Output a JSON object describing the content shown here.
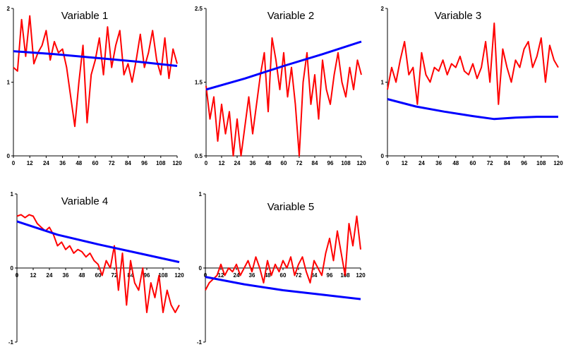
{
  "chart_data": [
    {
      "type": "line",
      "title": "Variable 1",
      "x_ticks": [
        0,
        12,
        24,
        36,
        48,
        60,
        72,
        84,
        96,
        108,
        120
      ],
      "y_ticks": [
        "0",
        "1",
        "2"
      ],
      "xlim": [
        0,
        120
      ],
      "ylim": [
        0,
        2
      ],
      "series": [
        {
          "color": "#ff0000",
          "x": [
            0,
            3,
            6,
            9,
            12,
            15,
            18,
            21,
            24,
            27,
            30,
            33,
            36,
            39,
            42,
            45,
            48,
            51,
            54,
            57,
            60,
            63,
            66,
            69,
            72,
            75,
            78,
            81,
            84,
            87,
            90,
            93,
            96,
            99,
            102,
            105,
            108,
            111,
            114,
            117,
            120
          ],
          "values": [
            1.2,
            1.15,
            1.85,
            1.35,
            1.9,
            1.25,
            1.4,
            1.5,
            1.7,
            1.3,
            1.55,
            1.4,
            1.45,
            1.2,
            0.8,
            0.4,
            1.0,
            1.5,
            0.45,
            1.1,
            1.3,
            1.6,
            1.1,
            1.75,
            1.2,
            1.5,
            1.7,
            1.1,
            1.25,
            1.0,
            1.3,
            1.65,
            1.2,
            1.4,
            1.7,
            1.3,
            1.1,
            1.6,
            1.05,
            1.45,
            1.25
          ]
        },
        {
          "color": "#0000ff",
          "x": [
            0,
            30,
            60,
            90,
            120
          ],
          "values": [
            1.42,
            1.38,
            1.33,
            1.28,
            1.22
          ]
        }
      ]
    },
    {
      "type": "line",
      "title": "Variable 2",
      "x_ticks": [
        0,
        12,
        24,
        36,
        48,
        60,
        72,
        84,
        96,
        108,
        120
      ],
      "y_ticks": [
        "0.5",
        "1.5",
        "2.5"
      ],
      "xlim": [
        0,
        120
      ],
      "ylim": [
        0.5,
        2.5
      ],
      "series": [
        {
          "color": "#ff0000",
          "x": [
            0,
            3,
            6,
            9,
            12,
            15,
            18,
            21,
            24,
            27,
            30,
            33,
            36,
            39,
            42,
            45,
            48,
            51,
            54,
            57,
            60,
            63,
            66,
            69,
            72,
            75,
            78,
            81,
            84,
            87,
            90,
            93,
            96,
            99,
            102,
            105,
            108,
            111,
            114,
            117,
            120
          ],
          "values": [
            1.45,
            1.0,
            1.3,
            0.7,
            1.2,
            0.8,
            1.1,
            0.5,
            1.0,
            0.5,
            0.9,
            1.3,
            0.8,
            1.2,
            1.6,
            1.9,
            1.1,
            2.1,
            1.8,
            1.4,
            1.9,
            1.3,
            1.7,
            1.2,
            0.5,
            1.5,
            1.9,
            1.2,
            1.6,
            1.0,
            1.8,
            1.4,
            1.2,
            1.6,
            1.9,
            1.5,
            1.3,
            1.7,
            1.4,
            1.8,
            1.6
          ]
        },
        {
          "color": "#0000ff",
          "x": [
            0,
            30,
            60,
            90,
            120
          ],
          "values": [
            1.4,
            1.55,
            1.72,
            1.88,
            2.05
          ]
        }
      ]
    },
    {
      "type": "line",
      "title": "Variable 3",
      "x_ticks": [
        0,
        12,
        24,
        36,
        48,
        60,
        72,
        84,
        96,
        108,
        120
      ],
      "y_ticks": [
        "0",
        "1",
        "2"
      ],
      "xlim": [
        0,
        120
      ],
      "ylim": [
        0,
        2
      ],
      "series": [
        {
          "color": "#ff0000",
          "x": [
            0,
            3,
            6,
            9,
            12,
            15,
            18,
            21,
            24,
            27,
            30,
            33,
            36,
            39,
            42,
            45,
            48,
            51,
            54,
            57,
            60,
            63,
            66,
            69,
            72,
            75,
            78,
            81,
            84,
            87,
            90,
            93,
            96,
            99,
            102,
            105,
            108,
            111,
            114,
            117,
            120
          ],
          "values": [
            0.9,
            1.2,
            1.0,
            1.3,
            1.55,
            1.1,
            1.2,
            0.7,
            1.4,
            1.1,
            1.0,
            1.2,
            1.15,
            1.3,
            1.1,
            1.25,
            1.2,
            1.35,
            1.15,
            1.1,
            1.25,
            1.05,
            1.2,
            1.55,
            1.0,
            1.8,
            0.7,
            1.45,
            1.2,
            1.0,
            1.3,
            1.2,
            1.45,
            1.55,
            1.2,
            1.35,
            1.6,
            1.0,
            1.5,
            1.3,
            1.2
          ]
        },
        {
          "color": "#0000ff",
          "x": [
            0,
            20,
            40,
            60,
            75,
            90,
            105,
            120
          ],
          "values": [
            0.77,
            0.67,
            0.6,
            0.54,
            0.5,
            0.52,
            0.53,
            0.53
          ]
        }
      ]
    },
    {
      "type": "line",
      "title": "Variable 4",
      "x_ticks": [
        0,
        12,
        24,
        36,
        48,
        60,
        72,
        84,
        96,
        108,
        120
      ],
      "y_ticks": [
        "-1",
        "0",
        "1"
      ],
      "xlim": [
        0,
        120
      ],
      "ylim": [
        -1,
        1
      ],
      "series": [
        {
          "color": "#ff0000",
          "x": [
            0,
            3,
            6,
            9,
            12,
            15,
            18,
            21,
            24,
            27,
            30,
            33,
            36,
            39,
            42,
            45,
            48,
            51,
            54,
            57,
            60,
            63,
            66,
            69,
            72,
            75,
            78,
            81,
            84,
            87,
            90,
            93,
            96,
            99,
            102,
            105,
            108,
            111,
            114,
            117,
            120
          ],
          "values": [
            0.7,
            0.72,
            0.68,
            0.72,
            0.7,
            0.6,
            0.55,
            0.5,
            0.55,
            0.45,
            0.3,
            0.35,
            0.25,
            0.3,
            0.2,
            0.25,
            0.22,
            0.15,
            0.2,
            0.1,
            0.05,
            -0.1,
            0.1,
            0.0,
            0.3,
            -0.3,
            0.2,
            -0.5,
            0.1,
            -0.2,
            -0.3,
            0.0,
            -0.6,
            -0.2,
            -0.4,
            -0.1,
            -0.6,
            -0.3,
            -0.5,
            -0.6,
            -0.5
          ]
        },
        {
          "color": "#0000ff",
          "x": [
            0,
            30,
            60,
            90,
            120
          ],
          "values": [
            0.63,
            0.45,
            0.32,
            0.2,
            0.08
          ]
        }
      ]
    },
    {
      "type": "line",
      "title": "Variable 5",
      "x_ticks": [
        0,
        12,
        24,
        36,
        48,
        60,
        72,
        84,
        96,
        108,
        120
      ],
      "y_ticks": [
        "-1",
        "0",
        "1"
      ],
      "xlim": [
        0,
        120
      ],
      "ylim": [
        -1,
        1
      ],
      "series": [
        {
          "color": "#ff0000",
          "x": [
            0,
            3,
            6,
            9,
            12,
            15,
            18,
            21,
            24,
            27,
            30,
            33,
            36,
            39,
            42,
            45,
            48,
            51,
            54,
            57,
            60,
            63,
            66,
            69,
            72,
            75,
            78,
            81,
            84,
            87,
            90,
            93,
            96,
            99,
            102,
            105,
            108,
            111,
            114,
            117,
            120
          ],
          "values": [
            -0.3,
            -0.2,
            -0.15,
            -0.1,
            0.05,
            -0.1,
            0.0,
            -0.05,
            0.05,
            -0.1,
            0.0,
            0.1,
            -0.05,
            0.15,
            0.0,
            -0.2,
            0.1,
            -0.1,
            0.05,
            -0.05,
            0.1,
            0.0,
            0.15,
            -0.1,
            0.05,
            0.15,
            -0.05,
            -0.2,
            0.1,
            0.0,
            -0.1,
            0.2,
            0.4,
            0.1,
            0.5,
            0.2,
            -0.1,
            0.6,
            0.3,
            0.7,
            0.25
          ]
        },
        {
          "color": "#0000ff",
          "x": [
            0,
            30,
            60,
            90,
            120
          ],
          "values": [
            -0.12,
            -0.22,
            -0.3,
            -0.36,
            -0.42
          ]
        }
      ]
    }
  ]
}
